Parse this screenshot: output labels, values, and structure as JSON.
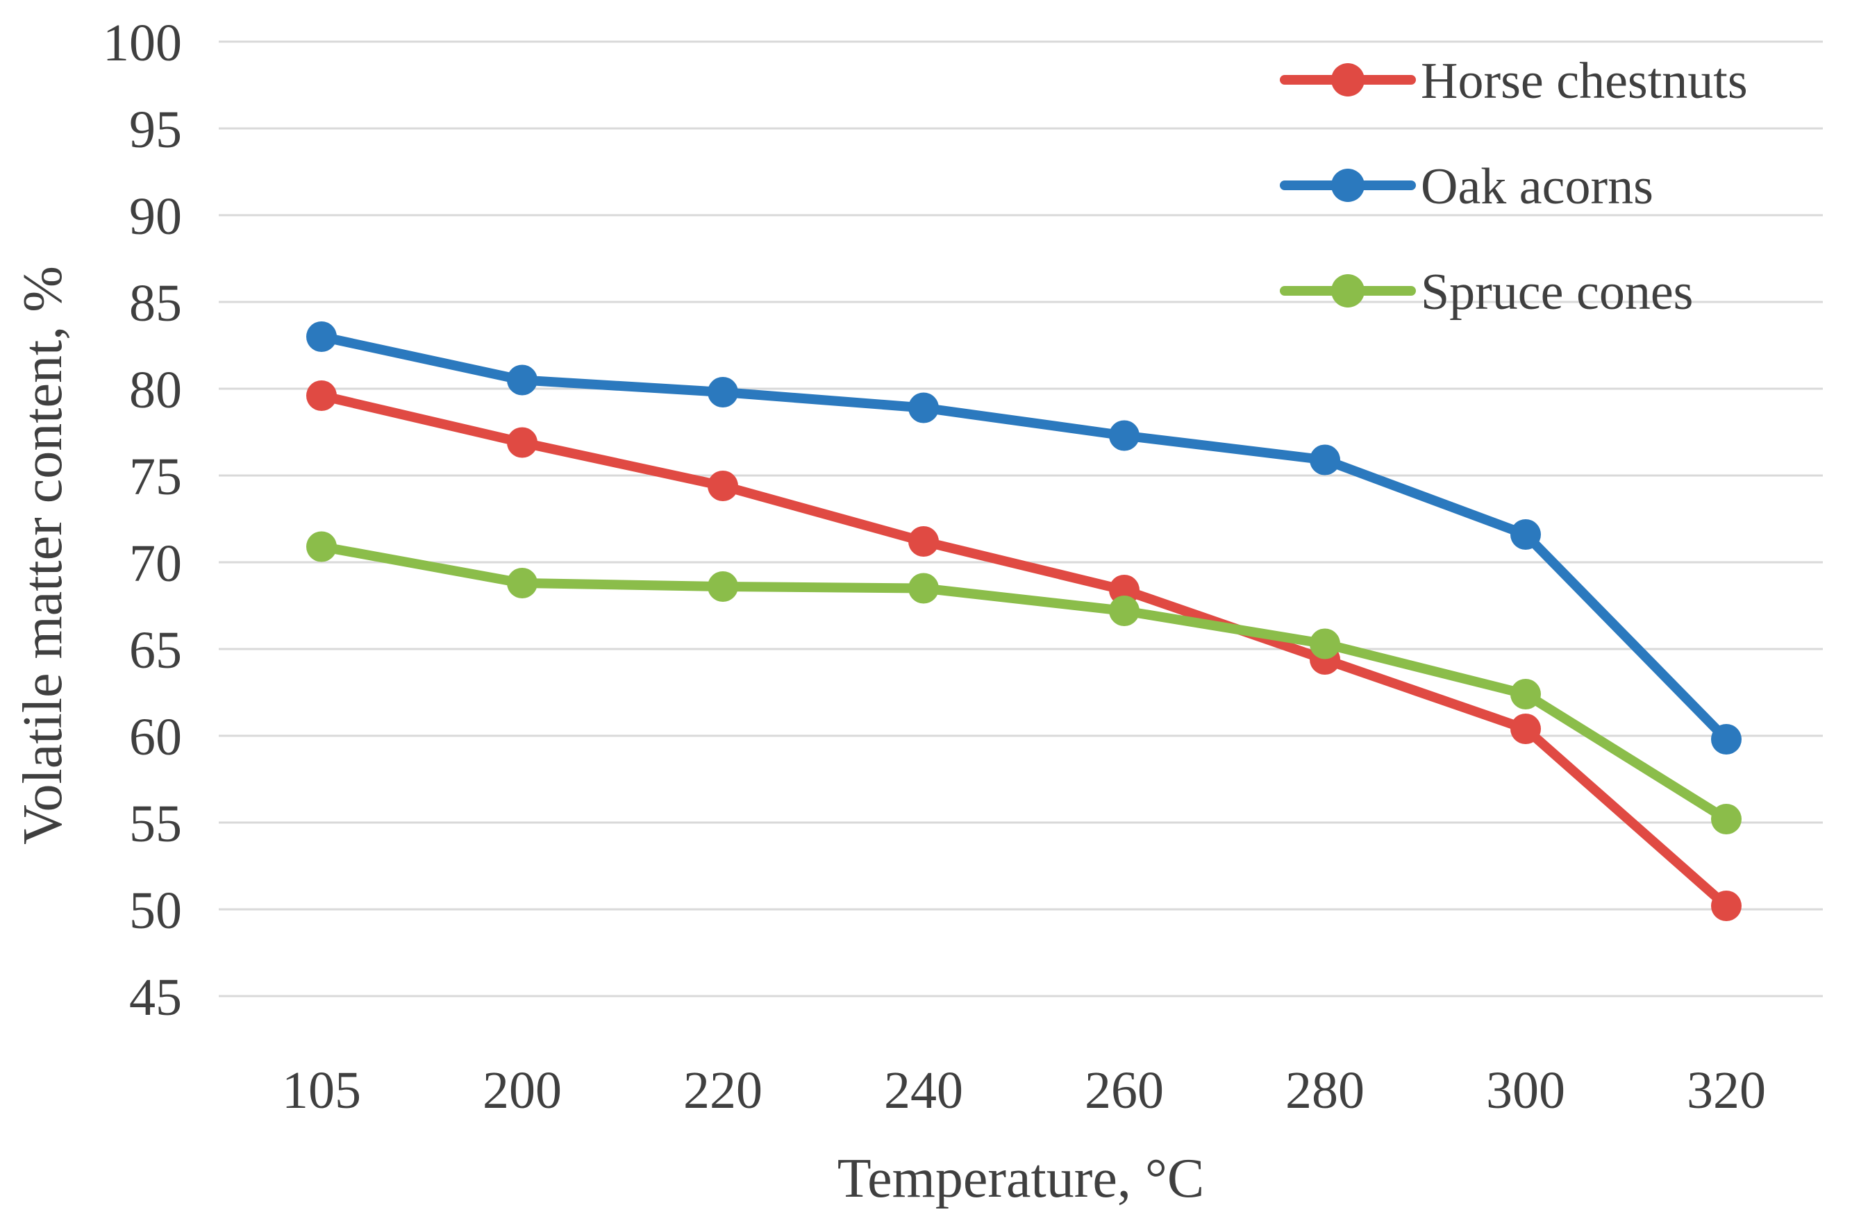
{
  "chart_data": {
    "type": "line",
    "title": "",
    "xlabel": "Temperature, °C",
    "ylabel": "Volatile matter content, %",
    "x_categories": [
      "105",
      "200",
      "220",
      "240",
      "260",
      "280",
      "300",
      "320"
    ],
    "y_ticks": [
      100,
      95,
      90,
      85,
      80,
      75,
      70,
      65,
      60,
      55,
      50,
      45
    ],
    "ylim": [
      45,
      100
    ],
    "grid": true,
    "legend_position": "top-right",
    "series": [
      {
        "name": "Horse chestnuts",
        "color": "#e04a43",
        "values": [
          79.6,
          76.9,
          74.4,
          71.2,
          68.4,
          64.4,
          60.4,
          50.2
        ]
      },
      {
        "name": "Oak acorns",
        "color": "#2b79be",
        "values": [
          83.0,
          80.5,
          79.8,
          78.9,
          77.3,
          75.9,
          71.6,
          59.8
        ]
      },
      {
        "name": "Spruce cones",
        "color": "#8bbd4a",
        "values": [
          70.9,
          68.8,
          68.6,
          68.5,
          67.2,
          65.3,
          62.4,
          55.2
        ]
      }
    ],
    "styles": {
      "grid_color": "#d9d9d9",
      "text_color": "#3f3f3f",
      "background": "#ffffff"
    }
  }
}
